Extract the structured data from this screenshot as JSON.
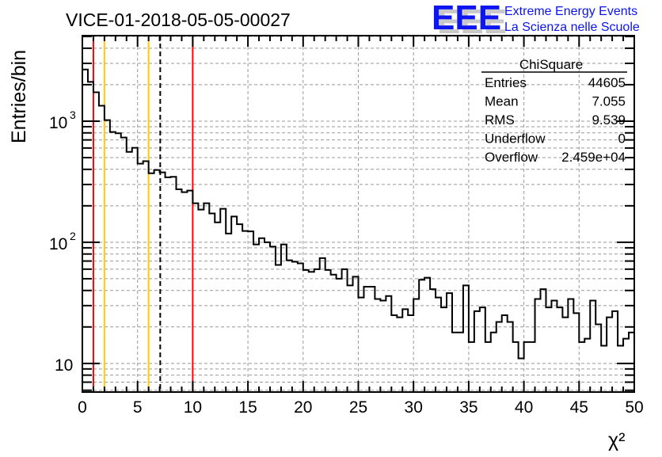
{
  "logo": {
    "mark": "EEE",
    "line1": "Extreme Energy Events",
    "line2": "La Scienza nelle Scuole",
    "color": "#0a14f0"
  },
  "stats": {
    "title": "ChiSquare",
    "rows": [
      {
        "label": "Entries",
        "value": "44605"
      },
      {
        "label": "Mean",
        "value": "7.055"
      },
      {
        "label": "RMS",
        "value": "9.539"
      },
      {
        "label": "Underflow",
        "value": "0"
      },
      {
        "label": "Overflow",
        "value": "2.459e+04"
      }
    ]
  },
  "chart_data": {
    "type": "bar",
    "subtype": "histogram-step",
    "title": "VICE-01-2018-05-05-00027",
    "xlabel": "χ²",
    "ylabel": "Entries/bin",
    "xlim": [
      0,
      50
    ],
    "ylim": [
      5.8,
      5080
    ],
    "yscale": "log",
    "grid": true,
    "bin_width": 0.5,
    "x_ticks": [
      "0",
      "5",
      "10",
      "15",
      "20",
      "25",
      "30",
      "35",
      "40",
      "45",
      "50"
    ],
    "y_ticks": [
      {
        "value": 10,
        "label": "10"
      },
      {
        "value": 100,
        "label": "10",
        "exp": "2"
      },
      {
        "value": 1000,
        "label": "10",
        "exp": "3"
      }
    ],
    "values": [
      2670,
      2110,
      1730,
      1340,
      1020,
      814,
      794,
      733,
      558,
      602,
      446,
      467,
      371,
      395,
      378,
      344,
      347,
      274,
      259,
      267,
      210,
      186,
      210,
      173,
      146,
      189,
      118,
      163,
      141,
      124,
      123,
      96,
      108,
      100,
      92,
      65,
      96,
      71,
      69,
      67,
      59,
      57,
      60,
      74,
      59,
      54,
      50,
      60,
      44,
      52,
      35,
      43,
      43,
      34,
      33,
      36,
      25,
      24,
      28,
      25,
      34,
      49,
      51,
      41,
      35,
      29,
      38,
      18,
      18,
      44,
      15,
      27,
      29,
      15,
      18,
      22,
      25,
      22,
      15,
      11,
      15,
      15,
      34,
      41,
      29,
      33,
      29,
      24,
      34,
      26,
      15,
      16,
      33,
      21,
      14,
      24,
      27,
      14,
      16,
      18
    ],
    "markers": [
      {
        "x": 1,
        "color": "#ff0000",
        "style": "solid"
      },
      {
        "x": 2,
        "color": "#ffcc00",
        "style": "solid"
      },
      {
        "x": 6,
        "color": "#ffcc00",
        "style": "solid"
      },
      {
        "x": 7.055,
        "color": "#000000",
        "style": "dashed"
      },
      {
        "x": 10,
        "color": "#ff0000",
        "style": "solid"
      }
    ],
    "legend": "top-right"
  }
}
